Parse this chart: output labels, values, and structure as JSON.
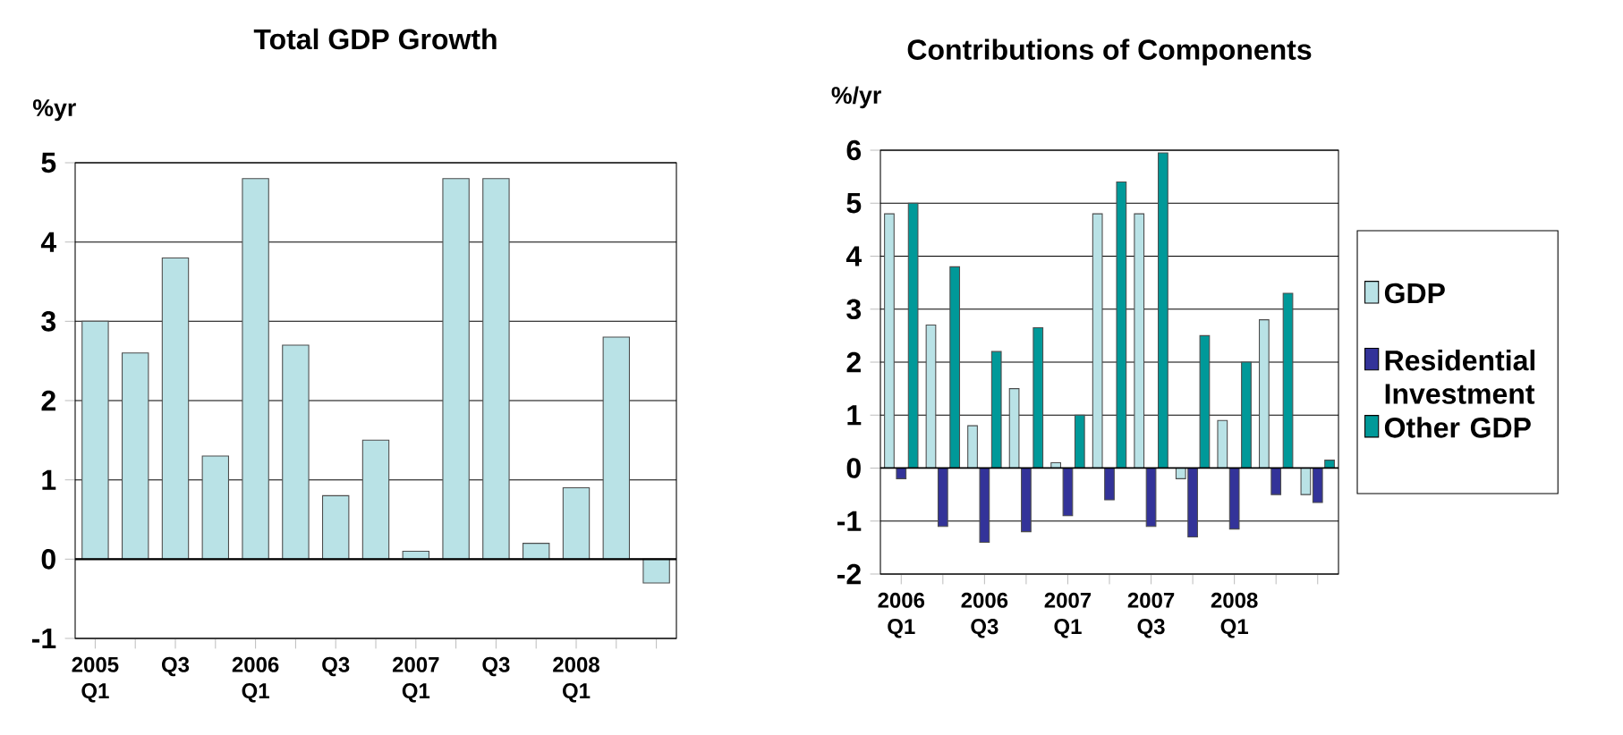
{
  "chart_data": [
    {
      "type": "bar",
      "title": "Total GDP Growth",
      "ylabel": "%yr",
      "categories": [
        "2005 Q1",
        null,
        "Q3",
        null,
        "2006 Q1",
        null,
        "Q3",
        null,
        "2007 Q1",
        null,
        "Q3",
        null,
        "2008 Q1",
        null,
        null
      ],
      "values": [
        3.0,
        2.6,
        3.8,
        1.3,
        4.8,
        2.7,
        0.8,
        1.5,
        0.1,
        4.8,
        4.8,
        0.2,
        0.9,
        2.8,
        -0.3
      ],
      "color": "#b9e2e6",
      "ylim": [
        -1,
        5
      ],
      "yticks": [
        -1,
        0,
        1,
        2,
        3,
        4,
        5
      ],
      "grid": "y",
      "legend": false
    },
    {
      "type": "bar",
      "title": "Contributions of Components",
      "ylabel": "%/yr",
      "categories": [
        "2006 Q1",
        null,
        "2006 Q3",
        null,
        "2007 Q1",
        null,
        "2007 Q3",
        null,
        "2008 Q1",
        null,
        null
      ],
      "series": [
        {
          "name": "GDP",
          "color": "#b9e2e6",
          "values": [
            4.8,
            2.7,
            0.8,
            1.5,
            0.1,
            4.8,
            4.8,
            -0.2,
            0.9,
            2.8,
            -0.5
          ]
        },
        {
          "name": "Residential Investment",
          "color": "#333399",
          "values": [
            -0.2,
            -1.1,
            -1.4,
            -1.2,
            -0.9,
            -0.6,
            -1.1,
            -1.3,
            -1.15,
            -0.5,
            -0.65
          ]
        },
        {
          "name": "Other GDP",
          "color": "#009999",
          "values": [
            5.0,
            3.8,
            2.2,
            2.65,
            1.0,
            5.4,
            5.95,
            2.5,
            2.0,
            3.3,
            0.15
          ]
        }
      ],
      "ylim": [
        -2,
        6
      ],
      "yticks": [
        -2,
        -1,
        0,
        1,
        2,
        3,
        4,
        5,
        6
      ],
      "grid": "y",
      "legend": "right"
    }
  ]
}
